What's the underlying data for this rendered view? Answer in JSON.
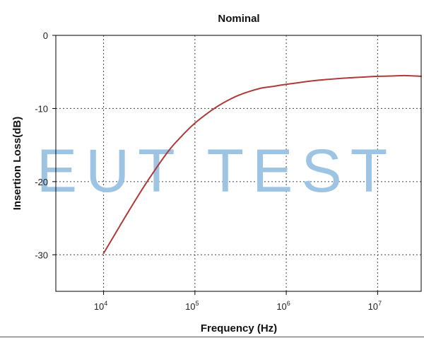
{
  "chart_data": {
    "type": "line",
    "title": "Nominal",
    "xlabel": "Frequency (Hz)",
    "ylabel": "Insertion Loss(dB)",
    "x_scale": "log",
    "xlim": [
      3000,
      30000000
    ],
    "ylim": [
      -35,
      0
    ],
    "x_ticks": [
      {
        "value": 10000,
        "base": "10",
        "exp": "4"
      },
      {
        "value": 100000,
        "base": "10",
        "exp": "5"
      },
      {
        "value": 1000000,
        "base": "10",
        "exp": "6"
      },
      {
        "value": 10000000,
        "base": "10",
        "exp": "7"
      }
    ],
    "y_ticks": [
      {
        "value": 0,
        "label": "0"
      },
      {
        "value": -10,
        "label": "-10"
      },
      {
        "value": -20,
        "label": "-20"
      },
      {
        "value": -30,
        "label": "-30"
      }
    ],
    "grid": true,
    "series": [
      {
        "color": "#b03a3a",
        "x": [
          10000,
          15000,
          20000,
          30000,
          50000,
          70000,
          100000,
          150000,
          200000,
          300000,
          500000,
          700000,
          1000000,
          2000000,
          3000000,
          5000000,
          7000000,
          10000000,
          15000000,
          20000000,
          30000000
        ],
        "y": [
          -29.8,
          -26.1,
          -23.5,
          -20.0,
          -16.0,
          -13.9,
          -12.0,
          -10.3,
          -9.3,
          -8.2,
          -7.3,
          -7.0,
          -6.7,
          -6.2,
          -6.0,
          -5.8,
          -5.7,
          -5.6,
          -5.55,
          -5.5,
          -5.6
        ]
      }
    ]
  },
  "watermark": {
    "text": "EUT TEST",
    "color": "#9ec4e4"
  }
}
